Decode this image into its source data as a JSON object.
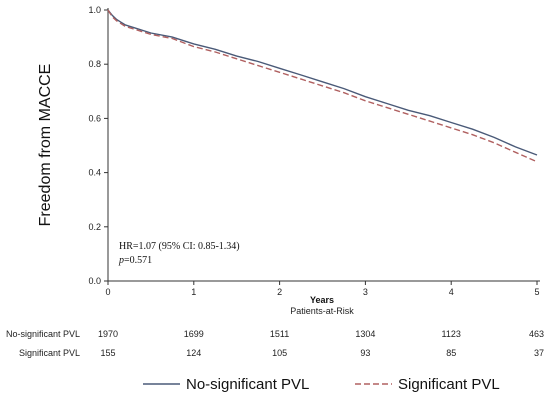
{
  "chart_data": {
    "type": "line",
    "title": "",
    "xlabel": "Years",
    "ylabel": "Freedom from MACCE",
    "xlim": [
      0,
      5
    ],
    "ylim": [
      0.0,
      1.0
    ],
    "x_ticks": [
      "0",
      "1",
      "2",
      "3",
      "4",
      "5"
    ],
    "y_ticks": [
      "0.0",
      "0.2",
      "0.4",
      "0.6",
      "0.8",
      "1.0"
    ],
    "grid": false,
    "legend_position": "bottom",
    "series": [
      {
        "name": "No-significant PVL",
        "color": "#4a5a78",
        "style": "solid",
        "x": [
          0,
          0.05,
          0.1,
          0.15,
          0.2,
          0.3,
          0.5,
          0.75,
          1.0,
          1.25,
          1.5,
          1.75,
          2.0,
          2.25,
          2.5,
          2.75,
          3.0,
          3.25,
          3.5,
          3.75,
          4.0,
          4.25,
          4.5,
          4.75,
          5.0
        ],
        "y": [
          1.0,
          0.98,
          0.965,
          0.955,
          0.945,
          0.935,
          0.915,
          0.9,
          0.875,
          0.855,
          0.83,
          0.81,
          0.785,
          0.76,
          0.735,
          0.71,
          0.68,
          0.655,
          0.63,
          0.61,
          0.585,
          0.56,
          0.53,
          0.495,
          0.465
        ]
      },
      {
        "name": "Significant PVL",
        "color": "#b06060",
        "style": "dashed",
        "x": [
          0,
          0.05,
          0.1,
          0.15,
          0.2,
          0.3,
          0.5,
          0.75,
          1.0,
          1.25,
          1.5,
          1.75,
          2.0,
          2.25,
          2.5,
          2.75,
          3.0,
          3.25,
          3.5,
          3.75,
          4.0,
          4.25,
          4.5,
          4.75,
          5.0
        ],
        "y": [
          1.0,
          0.975,
          0.96,
          0.95,
          0.94,
          0.93,
          0.91,
          0.895,
          0.865,
          0.845,
          0.82,
          0.795,
          0.77,
          0.745,
          0.72,
          0.695,
          0.665,
          0.64,
          0.615,
          0.59,
          0.565,
          0.54,
          0.51,
          0.475,
          0.44
        ]
      }
    ],
    "annotation": {
      "line1": "HR=1.07 (95% CI: 0.85-1.34)",
      "p_symbol": "p",
      "p_value": "=0.571"
    },
    "risk_table": {
      "title": "Patients-at-Risk",
      "rows": [
        {
          "label": "No-significant PVL",
          "values": [
            "1970",
            "1699",
            "1511",
            "1304",
            "1123",
            "463"
          ]
        },
        {
          "label": "Significant PVL",
          "values": [
            "155",
            "124",
            "105",
            "93",
            "85",
            "37"
          ]
        }
      ]
    }
  }
}
